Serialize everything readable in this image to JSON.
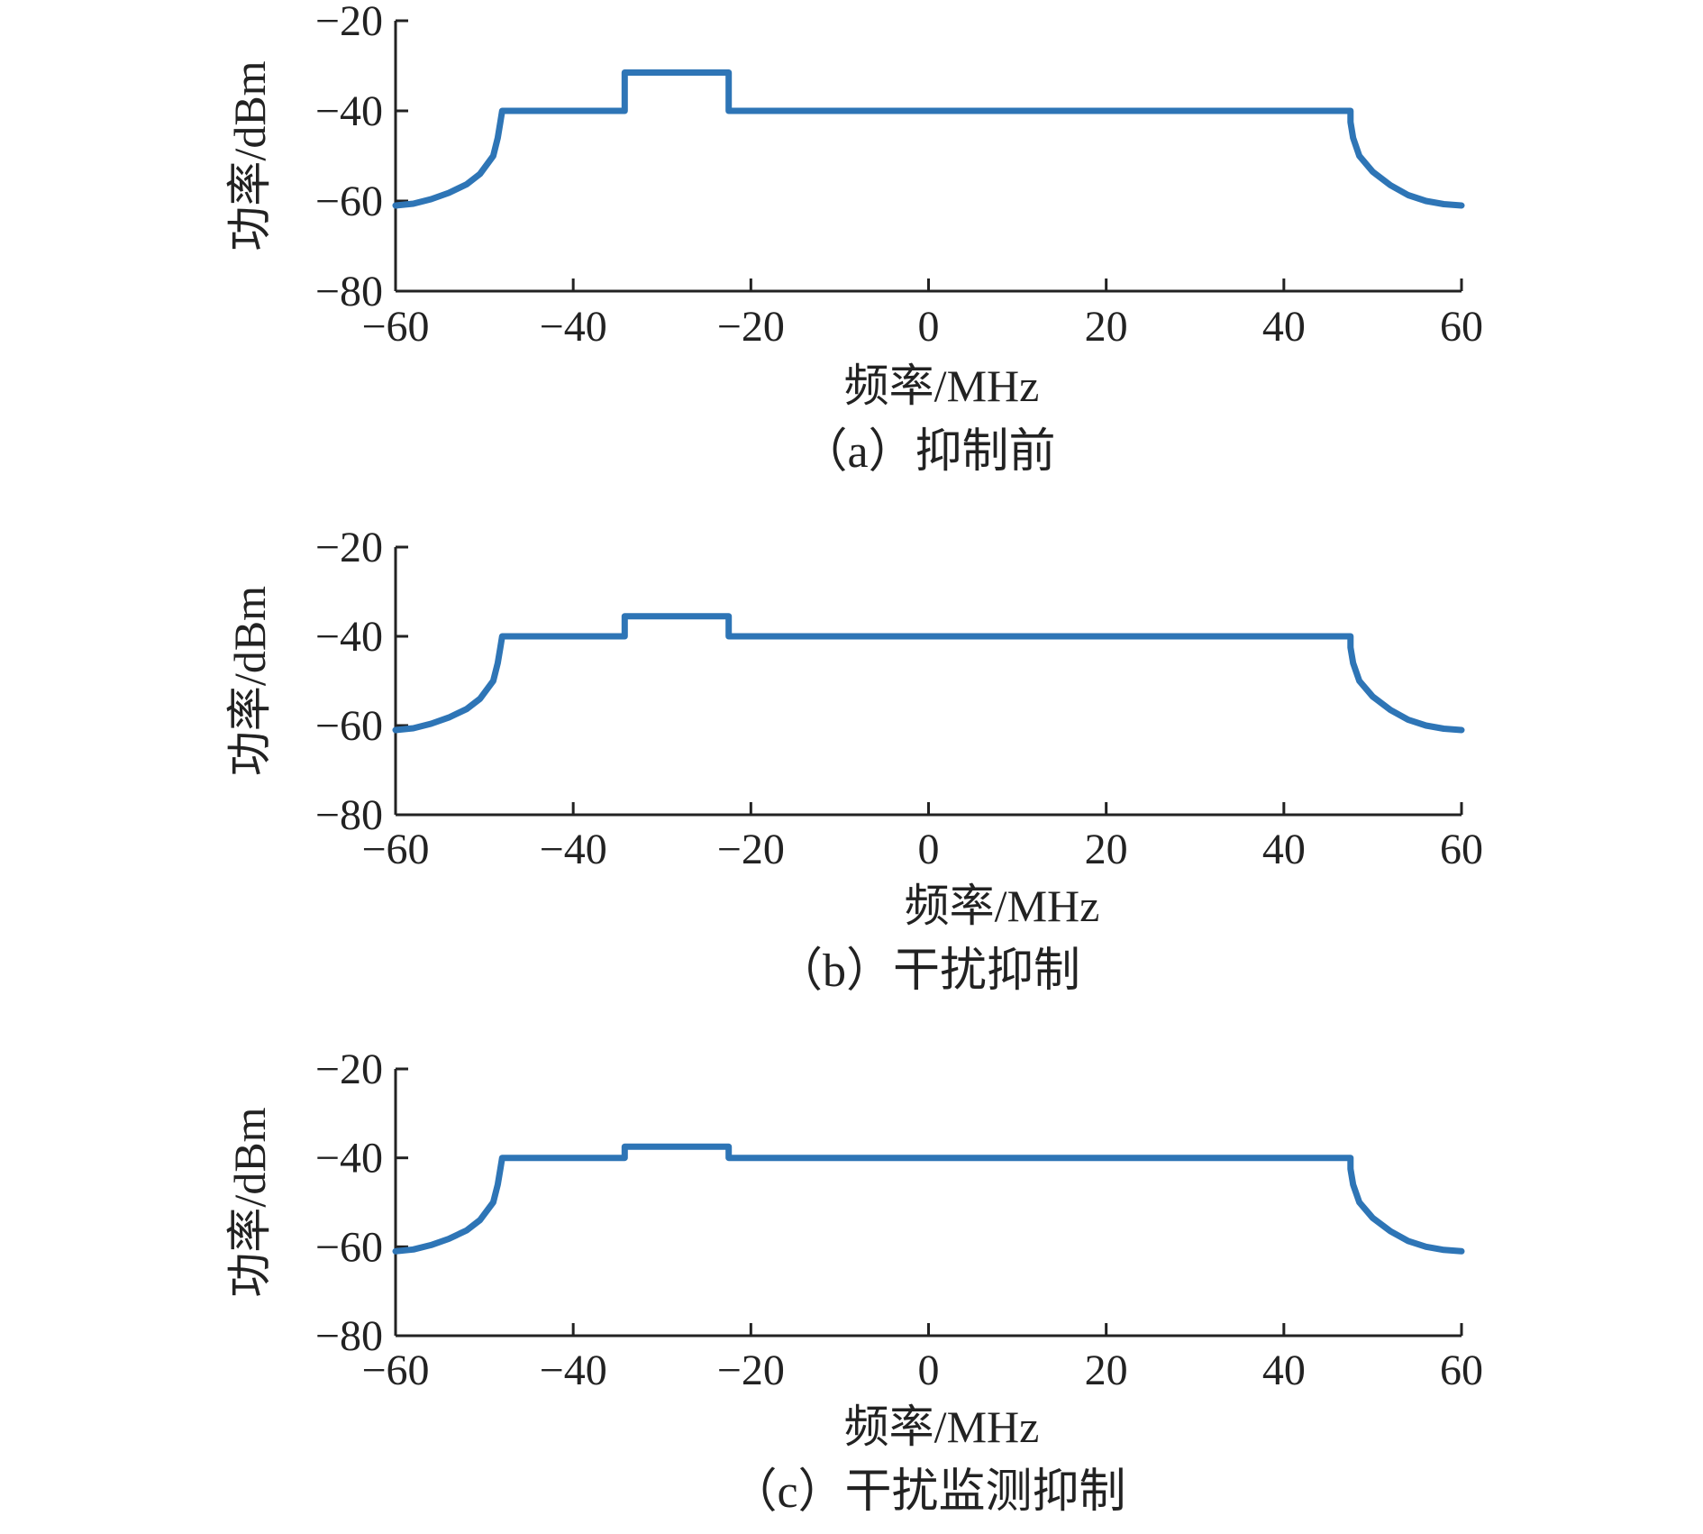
{
  "colors": {
    "line": "#2e75b6",
    "axis": "#222222",
    "text": "#222222"
  },
  "chart_data": [
    {
      "type": "line",
      "caption": "（a）抑制前",
      "xlabel": "频率/MHz",
      "ylabel": "功率/dBm",
      "xlim": [
        -60,
        60
      ],
      "ylim": [
        -80,
        -20
      ],
      "xticks": [
        -60,
        -40,
        -20,
        0,
        20,
        40,
        60
      ],
      "yticks": [
        -20,
        -40,
        -60,
        -80
      ],
      "xtick_labels": [
        "−60",
        "−40",
        "−20",
        "0",
        "20",
        "40",
        "60"
      ],
      "ytick_labels": [
        "−20",
        "−40",
        "−60",
        "−80"
      ],
      "grid": false,
      "series": [
        {
          "x": [
            -60,
            -58,
            -56,
            -54,
            -52,
            -50.5,
            -49,
            -48.5,
            -48.2,
            -48,
            -34.2,
            -34.2,
            -22.5,
            -22.5,
            47.5,
            47.5,
            47.8,
            48.5,
            50,
            52,
            54,
            56,
            58,
            60
          ],
          "y": [
            -61,
            -60.6,
            -59.6,
            -58.2,
            -56.3,
            -54,
            -50,
            -46,
            -42.5,
            -40,
            -40,
            -31.5,
            -31.5,
            -40,
            -40,
            -42.5,
            -46,
            -50,
            -53.5,
            -56.5,
            -58.7,
            -60,
            -60.7,
            -61
          ]
        }
      ]
    },
    {
      "type": "line",
      "caption": "（b）干扰抑制",
      "xlabel": "频率/MHz",
      "ylabel": "功率/dBm",
      "xlim": [
        -60,
        60
      ],
      "ylim": [
        -80,
        -20
      ],
      "xticks": [
        -60,
        -40,
        -20,
        0,
        20,
        40,
        60
      ],
      "yticks": [
        -20,
        -40,
        -60,
        -80
      ],
      "xtick_labels": [
        "−60",
        "−40",
        "−20",
        "0",
        "20",
        "40",
        "60"
      ],
      "ytick_labels": [
        "−20",
        "−40",
        "−60",
        "−80"
      ],
      "grid": false,
      "series": [
        {
          "x": [
            -60,
            -58,
            -56,
            -54,
            -52,
            -50.5,
            -49,
            -48.5,
            -48.2,
            -48,
            -34.2,
            -34.2,
            -22.5,
            -22.5,
            47.5,
            47.5,
            47.8,
            48.5,
            50,
            52,
            54,
            56,
            58,
            60
          ],
          "y": [
            -61,
            -60.6,
            -59.6,
            -58.2,
            -56.3,
            -54,
            -50,
            -46,
            -42.5,
            -40,
            -40,
            -35.5,
            -35.5,
            -40,
            -40,
            -42.5,
            -46,
            -50,
            -53.5,
            -56.5,
            -58.7,
            -60,
            -60.7,
            -61
          ]
        }
      ]
    },
    {
      "type": "line",
      "caption": "（c）干扰监测抑制",
      "xlabel": "频率/MHz",
      "ylabel": "功率/dBm",
      "xlim": [
        -60,
        60
      ],
      "ylim": [
        -80,
        -20
      ],
      "xticks": [
        -60,
        -40,
        -20,
        0,
        20,
        40,
        60
      ],
      "yticks": [
        -20,
        -40,
        -60,
        -80
      ],
      "xtick_labels": [
        "−60",
        "−40",
        "−20",
        "0",
        "20",
        "40",
        "60"
      ],
      "ytick_labels": [
        "−20",
        "−40",
        "−60",
        "−80"
      ],
      "grid": false,
      "series": [
        {
          "x": [
            -60,
            -58,
            -56,
            -54,
            -52,
            -50.5,
            -49,
            -48.5,
            -48.2,
            -48,
            -34.2,
            -34.2,
            -22.5,
            -22.5,
            47.5,
            47.5,
            47.8,
            48.5,
            50,
            52,
            54,
            56,
            58,
            60
          ],
          "y": [
            -61,
            -60.6,
            -59.6,
            -58.2,
            -56.3,
            -54,
            -50,
            -46,
            -42.5,
            -40,
            -40,
            -37.5,
            -37.5,
            -40,
            -40,
            -42.5,
            -46,
            -50,
            -53.5,
            -56.5,
            -58.7,
            -60,
            -60.7,
            -61
          ]
        }
      ]
    }
  ]
}
